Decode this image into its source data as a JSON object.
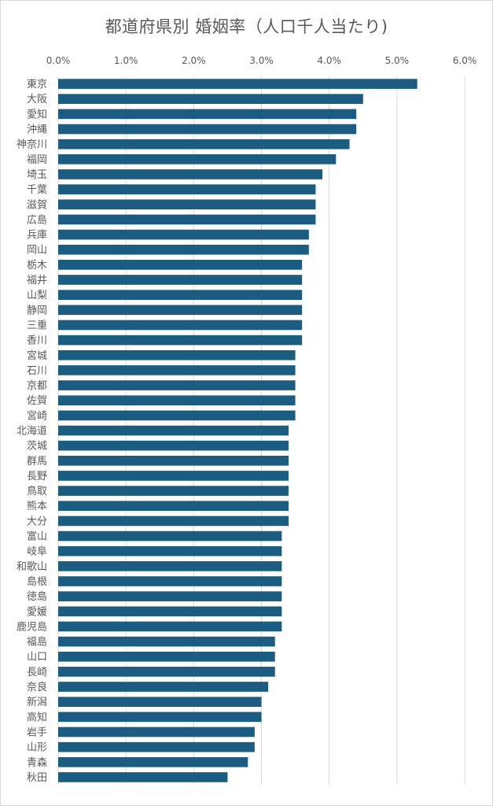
{
  "chart_data": {
    "type": "bar",
    "orientation": "horizontal",
    "title": "都道府県別 婚姻率（人口千人当たり)",
    "xlabel": "",
    "ylabel": "",
    "xlim": [
      0,
      6
    ],
    "ticks": [
      "0.0%",
      "1.0%",
      "2.0%",
      "3.0%",
      "4.0%",
      "5.0%",
      "6.0%"
    ],
    "tick_values": [
      0,
      1,
      2,
      3,
      4,
      5,
      6
    ],
    "grid": "vertical",
    "bar_color": "#1b5c80",
    "categories": [
      "東京",
      "大阪",
      "愛知",
      "沖縄",
      "神奈川",
      "福岡",
      "埼玉",
      "千葉",
      "滋賀",
      "広島",
      "兵庫",
      "岡山",
      "栃木",
      "福井",
      "山梨",
      "静岡",
      "三重",
      "香川",
      "宮城",
      "石川",
      "京都",
      "佐賀",
      "宮崎",
      "北海道",
      "茨城",
      "群馬",
      "長野",
      "鳥取",
      "熊本",
      "大分",
      "富山",
      "岐阜",
      "和歌山",
      "島根",
      "徳島",
      "愛媛",
      "鹿児島",
      "福島",
      "山口",
      "長崎",
      "奈良",
      "新潟",
      "高知",
      "岩手",
      "山形",
      "青森",
      "秋田"
    ],
    "values": [
      5.3,
      4.5,
      4.4,
      4.4,
      4.3,
      4.1,
      3.9,
      3.8,
      3.8,
      3.8,
      3.7,
      3.7,
      3.6,
      3.6,
      3.6,
      3.6,
      3.6,
      3.6,
      3.5,
      3.5,
      3.5,
      3.5,
      3.5,
      3.4,
      3.4,
      3.4,
      3.4,
      3.4,
      3.4,
      3.4,
      3.3,
      3.3,
      3.3,
      3.3,
      3.3,
      3.3,
      3.3,
      3.2,
      3.2,
      3.2,
      3.1,
      3.0,
      3.0,
      2.9,
      2.9,
      2.8,
      2.5
    ]
  }
}
